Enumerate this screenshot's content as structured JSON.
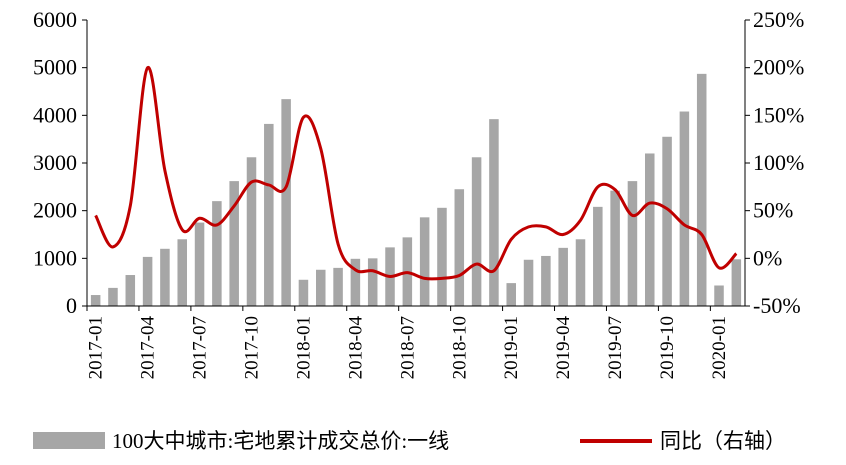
{
  "chart_data": {
    "type": "bar",
    "categories": [
      "2017-01",
      "2017-02",
      "2017-03",
      "2017-04",
      "2017-05",
      "2017-06",
      "2017-07",
      "2017-08",
      "2017-09",
      "2017-10",
      "2017-11",
      "2017-12",
      "2018-01",
      "2018-02",
      "2018-03",
      "2018-04",
      "2018-05",
      "2018-06",
      "2018-07",
      "2018-08",
      "2018-09",
      "2018-10",
      "2018-11",
      "2018-12",
      "2019-01",
      "2019-02",
      "2019-03",
      "2019-04",
      "2019-05",
      "2019-06",
      "2019-07",
      "2019-08",
      "2019-09",
      "2019-10",
      "2019-11",
      "2019-12",
      "2020-01",
      "2020-02"
    ],
    "x_tick_labels": [
      "2017-01",
      "2017-04",
      "2017-07",
      "2017-10",
      "2018-01",
      "2018-04",
      "2018-07",
      "2018-10",
      "2019-01",
      "2019-04",
      "2019-07",
      "2019-10",
      "2020-01"
    ],
    "series": [
      {
        "name": "100大中城市:宅地累计成交总价:一线",
        "type": "bar",
        "axis": "left",
        "color": "#a6a6a6",
        "values": [
          230,
          380,
          650,
          1030,
          1200,
          1400,
          1750,
          2200,
          2620,
          3120,
          3820,
          4340,
          550,
          760,
          800,
          990,
          1000,
          1230,
          1440,
          1860,
          2060,
          2450,
          3120,
          3920,
          480,
          970,
          1050,
          1220,
          1400,
          2080,
          2420,
          2620,
          3200,
          3550,
          4080,
          4870,
          430,
          980
        ]
      },
      {
        "name": "同比（右轴）",
        "type": "line",
        "axis": "right",
        "color": "#c00000",
        "values": [
          45,
          12,
          55,
          200,
          92,
          30,
          42,
          35,
          55,
          80,
          77,
          75,
          148,
          115,
          15,
          -12,
          -13,
          -19,
          -15,
          -21,
          -21,
          -18,
          -6,
          -13,
          20,
          33,
          33,
          25,
          40,
          75,
          72,
          45,
          58,
          52,
          35,
          25,
          -10,
          5
        ]
      }
    ],
    "y_left": {
      "ylim": [
        0,
        6000
      ],
      "ticks": [
        0,
        1000,
        2000,
        3000,
        4000,
        5000,
        6000
      ]
    },
    "y_right": {
      "ylim": [
        -50,
        250
      ],
      "ticks": [
        "-50%",
        "0%",
        "50%",
        "100%",
        "150%",
        "200%",
        "250%"
      ]
    },
    "grid": false,
    "legend": {
      "position": "bottom"
    }
  }
}
